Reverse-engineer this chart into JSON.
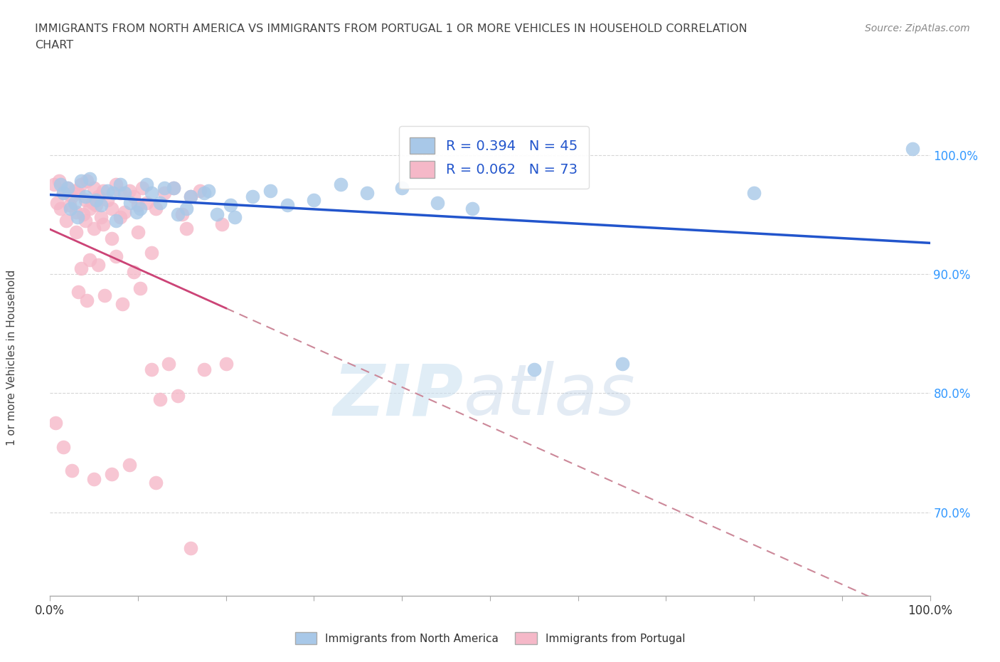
{
  "title_line1": "IMMIGRANTS FROM NORTH AMERICA VS IMMIGRANTS FROM PORTUGAL 1 OR MORE VEHICLES IN HOUSEHOLD CORRELATION",
  "title_line2": "CHART",
  "source": "Source: ZipAtlas.com",
  "ylabel": "1 or more Vehicles in Household",
  "xlim": [
    0.0,
    100.0
  ],
  "ylim": [
    63.0,
    103.0
  ],
  "yticks": [
    70.0,
    80.0,
    90.0,
    100.0
  ],
  "ytick_labels": [
    "70.0%",
    "80.0%",
    "90.0%",
    "100.0%"
  ],
  "xtick_left_label": "0.0%",
  "xtick_right_label": "100.0%",
  "legend_labels": [
    "Immigrants from North America",
    "Immigrants from Portugal"
  ],
  "R_north": 0.394,
  "N_north": 45,
  "R_portugal": 0.062,
  "N_portugal": 73,
  "north_color": "#a8c8e8",
  "portugal_color": "#f5b8c8",
  "north_line_color": "#2255cc",
  "portugal_line_solid_color": "#cc4477",
  "portugal_line_dash_color": "#cc8899",
  "watermark_zip": "ZIP",
  "watermark_atlas": "atlas",
  "north_x": [
    1.2,
    1.5,
    2.0,
    2.3,
    2.8,
    3.1,
    3.5,
    4.0,
    4.5,
    5.2,
    5.8,
    6.5,
    7.2,
    8.0,
    9.1,
    10.2,
    11.5,
    13.0,
    14.5,
    16.0,
    18.0,
    20.5,
    7.5,
    8.5,
    9.8,
    11.0,
    12.5,
    14.0,
    15.5,
    17.5,
    19.0,
    21.0,
    23.0,
    25.0,
    27.0,
    30.0,
    33.0,
    36.0,
    40.0,
    44.0,
    48.0,
    55.0,
    65.0,
    80.0,
    98.0
  ],
  "north_y": [
    97.5,
    96.8,
    97.2,
    95.5,
    96.0,
    94.8,
    97.8,
    96.5,
    98.0,
    96.2,
    95.8,
    97.0,
    96.8,
    97.5,
    96.0,
    95.5,
    96.8,
    97.2,
    95.0,
    96.5,
    97.0,
    95.8,
    94.5,
    96.8,
    95.2,
    97.5,
    96.0,
    97.2,
    95.5,
    96.8,
    95.0,
    94.8,
    96.5,
    97.0,
    95.8,
    96.2,
    97.5,
    96.8,
    97.2,
    96.0,
    95.5,
    82.0,
    82.5,
    96.8,
    100.5
  ],
  "portugal_x": [
    0.5,
    0.8,
    1.0,
    1.2,
    1.5,
    1.8,
    2.0,
    2.2,
    2.5,
    2.8,
    3.0,
    3.2,
    3.5,
    3.8,
    4.0,
    4.2,
    4.5,
    4.8,
    5.0,
    5.2,
    5.5,
    5.8,
    6.0,
    6.5,
    7.0,
    7.5,
    8.0,
    8.5,
    9.0,
    9.5,
    10.0,
    10.5,
    11.0,
    12.0,
    13.0,
    14.0,
    15.0,
    16.0,
    17.0,
    3.0,
    4.0,
    5.0,
    6.0,
    7.0,
    8.0,
    10.0,
    11.5,
    13.5,
    15.5,
    17.5,
    19.5,
    20.0,
    3.5,
    4.5,
    5.5,
    7.5,
    9.5,
    11.5,
    3.2,
    4.2,
    6.2,
    8.2,
    10.2,
    12.5,
    14.5,
    0.6,
    1.5,
    2.5,
    5.0,
    7.0,
    9.0,
    12.0,
    16.0
  ],
  "portugal_y": [
    97.5,
    96.0,
    97.8,
    95.5,
    96.8,
    94.5,
    97.2,
    95.8,
    96.5,
    97.0,
    95.2,
    96.8,
    97.5,
    95.0,
    96.2,
    97.8,
    95.5,
    96.0,
    97.2,
    95.8,
    96.5,
    94.8,
    97.0,
    96.2,
    95.5,
    97.5,
    96.8,
    95.2,
    97.0,
    96.5,
    95.8,
    97.2,
    96.0,
    95.5,
    96.8,
    97.2,
    95.0,
    96.5,
    97.0,
    93.5,
    94.5,
    93.8,
    94.2,
    93.0,
    94.8,
    93.5,
    82.0,
    82.5,
    93.8,
    82.0,
    94.2,
    82.5,
    90.5,
    91.2,
    90.8,
    91.5,
    90.2,
    91.8,
    88.5,
    87.8,
    88.2,
    87.5,
    88.8,
    79.5,
    79.8,
    77.5,
    75.5,
    73.5,
    72.8,
    73.2,
    74.0,
    72.5,
    67.0
  ]
}
